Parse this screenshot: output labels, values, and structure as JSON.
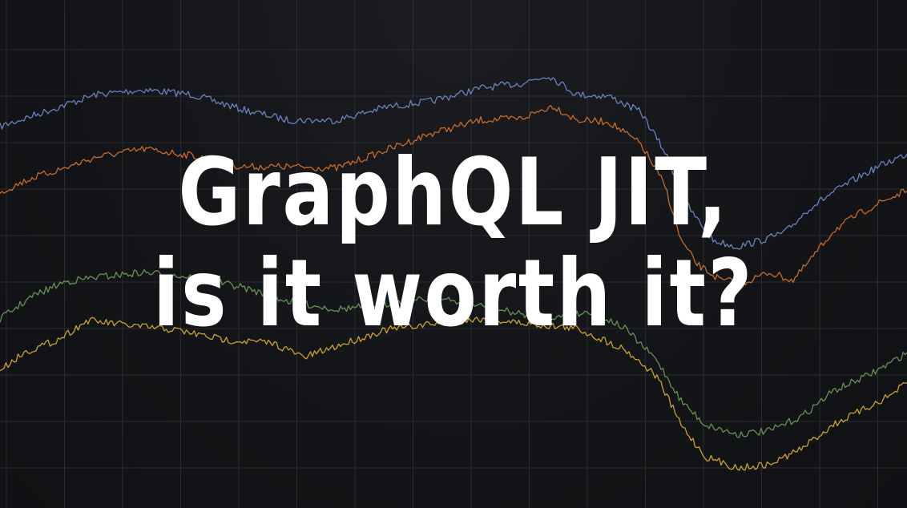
{
  "title": {
    "line1": "GraphQL JIT,",
    "line2": "is it worth it?"
  },
  "colors": {
    "background": "#121316",
    "grid": "#2a2c31",
    "title": "#ffffff"
  },
  "chart_data": {
    "type": "line",
    "grid": true,
    "ylim": [
      0,
      634
    ],
    "series": [
      {
        "color": "#6f8fd0",
        "points": [
          [
            0,
            158
          ],
          [
            60,
            138
          ],
          [
            120,
            118
          ],
          [
            180,
            112
          ],
          [
            240,
            118
          ],
          [
            300,
            136
          ],
          [
            360,
            150
          ],
          [
            420,
            150
          ],
          [
            480,
            134
          ],
          [
            540,
            126
          ],
          [
            600,
            110
          ],
          [
            650,
            104
          ],
          [
            685,
            94
          ],
          [
            720,
            118
          ],
          [
            760,
            120
          ],
          [
            800,
            140
          ],
          [
            830,
            190
          ],
          [
            860,
            260
          ],
          [
            890,
            300
          ],
          [
            920,
            308
          ],
          [
            950,
            300
          ],
          [
            980,
            290
          ],
          [
            1010,
            260
          ],
          [
            1040,
            240
          ],
          [
            1070,
            222
          ],
          [
            1100,
            206
          ],
          [
            1132,
            192
          ]
        ]
      },
      {
        "color": "#d9742a",
        "points": [
          [
            0,
            240
          ],
          [
            40,
            222
          ],
          [
            80,
            210
          ],
          [
            120,
            196
          ],
          [
            180,
            186
          ],
          [
            240,
            194
          ],
          [
            300,
            208
          ],
          [
            360,
            208
          ],
          [
            420,
            210
          ],
          [
            480,
            188
          ],
          [
            540,
            166
          ],
          [
            600,
            150
          ],
          [
            650,
            148
          ],
          [
            690,
            132
          ],
          [
            720,
            150
          ],
          [
            760,
            152
          ],
          [
            800,
            180
          ],
          [
            830,
            232
          ],
          [
            850,
            300
          ],
          [
            870,
            330
          ],
          [
            900,
            350
          ],
          [
            930,
            352
          ],
          [
            960,
            340
          ],
          [
            990,
            350
          ],
          [
            1015,
            320
          ],
          [
            1040,
            288
          ],
          [
            1070,
            268
          ],
          [
            1100,
            252
          ],
          [
            1132,
            238
          ]
        ]
      },
      {
        "color": "#6da05a",
        "points": [
          [
            0,
            398
          ],
          [
            40,
            370
          ],
          [
            80,
            352
          ],
          [
            120,
            346
          ],
          [
            180,
            340
          ],
          [
            240,
            346
          ],
          [
            300,
            358
          ],
          [
            360,
            376
          ],
          [
            420,
            386
          ],
          [
            480,
            380
          ],
          [
            540,
            372
          ],
          [
            600,
            382
          ],
          [
            650,
            392
          ],
          [
            700,
            396
          ],
          [
            740,
            388
          ],
          [
            780,
            410
          ],
          [
            820,
            450
          ],
          [
            850,
            500
          ],
          [
            880,
            530
          ],
          [
            920,
            542
          ],
          [
            960,
            538
          ],
          [
            1000,
            520
          ],
          [
            1040,
            488
          ],
          [
            1080,
            470
          ],
          [
            1110,
            454
          ],
          [
            1132,
            440
          ]
        ]
      },
      {
        "color": "#e0b32c",
        "points": [
          [
            0,
            462
          ],
          [
            30,
            440
          ],
          [
            70,
            425
          ],
          [
            110,
            400
          ],
          [
            160,
            406
          ],
          [
            220,
            412
          ],
          [
            280,
            424
          ],
          [
            340,
            428
          ],
          [
            380,
            446
          ],
          [
            420,
            432
          ],
          [
            480,
            412
          ],
          [
            540,
            404
          ],
          [
            600,
            398
          ],
          [
            660,
            404
          ],
          [
            720,
            410
          ],
          [
            780,
            436
          ],
          [
            820,
            470
          ],
          [
            850,
            530
          ],
          [
            880,
            570
          ],
          [
            920,
            584
          ],
          [
            960,
            580
          ],
          [
            1000,
            560
          ],
          [
            1040,
            530
          ],
          [
            1080,
            510
          ],
          [
            1110,
            494
          ],
          [
            1132,
            478
          ]
        ]
      }
    ]
  }
}
